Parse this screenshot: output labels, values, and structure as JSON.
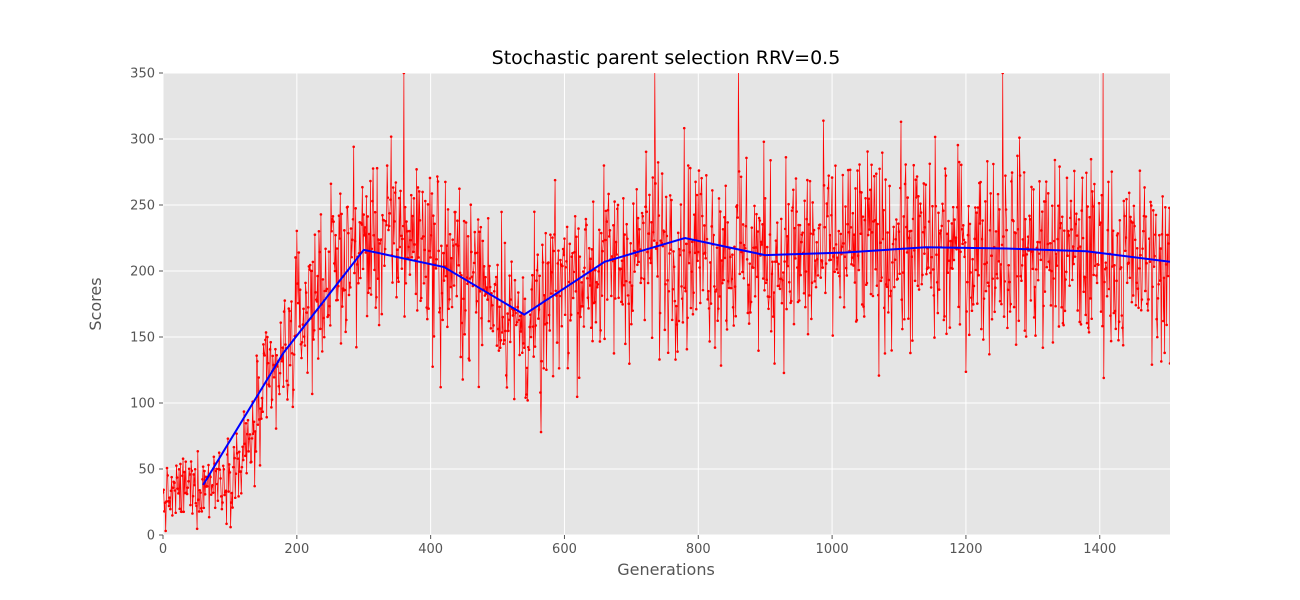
{
  "chart_data": {
    "type": "line",
    "title": "Stochastic parent selection  RRV=0.5",
    "xlabel": "Generations",
    "ylabel": "Scores",
    "xlim": [
      0,
      1505
    ],
    "ylim": [
      0,
      350
    ],
    "x_ticks": [
      0,
      200,
      400,
      600,
      800,
      1000,
      1200,
      1400
    ],
    "y_ticks": [
      0,
      50,
      100,
      150,
      200,
      250,
      300,
      350
    ],
    "grid": true,
    "style": "ggplot",
    "colors": {
      "plot_bg": "#e5e5e5",
      "grid": "#ffffff",
      "scores": "#ff0000",
      "trend": "#0000ff"
    },
    "series": [
      {
        "role": "scores",
        "style": "line with point markers",
        "generation_start": 0,
        "generation_end": 1505,
        "anchors": [
          [
            0,
            25
          ],
          [
            30,
            35
          ],
          [
            60,
            38
          ],
          [
            90,
            45
          ],
          [
            120,
            55
          ],
          [
            150,
            100
          ],
          [
            180,
            130
          ],
          [
            200,
            160
          ],
          [
            230,
            185
          ],
          [
            260,
            205
          ],
          [
            300,
            220
          ],
          [
            340,
            225
          ],
          [
            380,
            225
          ],
          [
            420,
            205
          ],
          [
            460,
            195
          ],
          [
            500,
            185
          ],
          [
            530,
            160
          ],
          [
            560,
            160
          ],
          [
            600,
            195
          ],
          [
            640,
            200
          ],
          [
            680,
            205
          ],
          [
            720,
            215
          ],
          [
            780,
            220
          ],
          [
            840,
            215
          ],
          [
            900,
            210
          ],
          [
            960,
            210
          ],
          [
            1000,
            215
          ],
          [
            1050,
            215
          ],
          [
            1100,
            220
          ],
          [
            1150,
            215
          ],
          [
            1200,
            215
          ],
          [
            1250,
            220
          ],
          [
            1300,
            215
          ],
          [
            1350,
            212
          ],
          [
            1400,
            210
          ],
          [
            1450,
            205
          ],
          [
            1505,
            205
          ]
        ],
        "spread": [
          [
            0,
            15
          ],
          [
            100,
            20
          ],
          [
            150,
            35
          ],
          [
            250,
            40
          ],
          [
            400,
            45
          ],
          [
            520,
            40
          ],
          [
            600,
            45
          ],
          [
            800,
            50
          ],
          [
            1000,
            50
          ],
          [
            1200,
            50
          ],
          [
            1505,
            45
          ]
        ],
        "points_shown": [
          [
            360,
            350
          ],
          [
            735,
            352
          ],
          [
            860,
            355
          ],
          [
            1255,
            350
          ],
          [
            1405,
            352
          ],
          [
            565,
            78
          ],
          [
            545,
            102
          ],
          [
            415,
            112
          ],
          [
            525,
            103
          ],
          [
            1505,
            130
          ]
        ]
      },
      {
        "role": "trend",
        "style": "line",
        "x": [
          60,
          180,
          300,
          420,
          540,
          660,
          780,
          900,
          1020,
          1140,
          1260,
          1380,
          1505
        ],
        "y": [
          38,
          138,
          216,
          203,
          167,
          207,
          225,
          212,
          214,
          218,
          217,
          215,
          207
        ]
      }
    ]
  }
}
